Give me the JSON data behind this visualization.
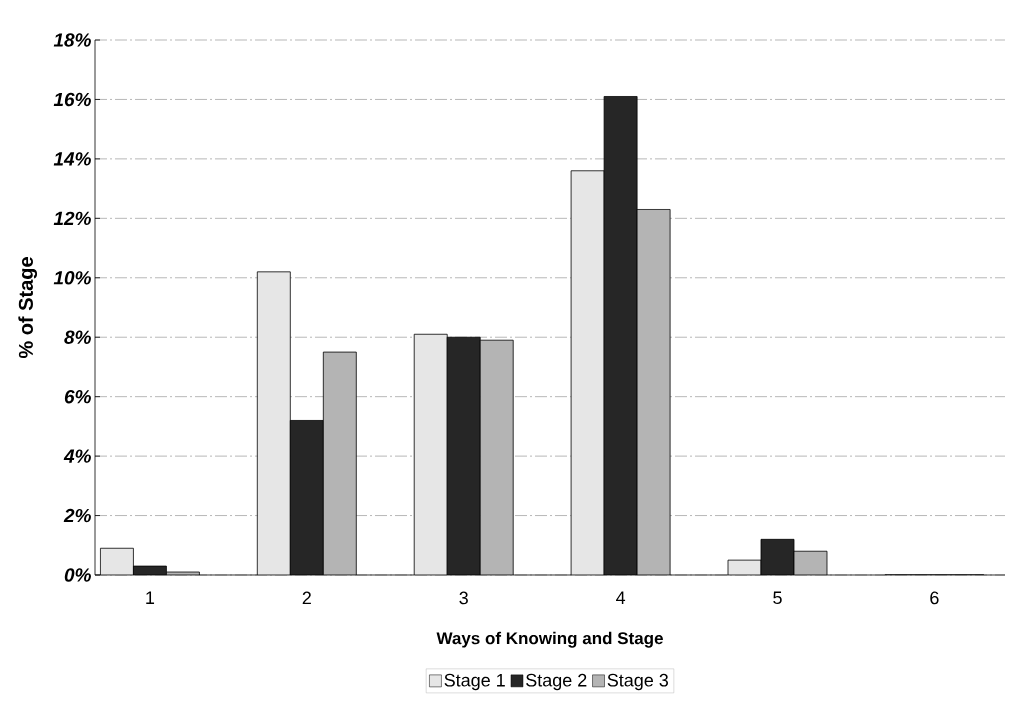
{
  "chart_data": {
    "type": "bar",
    "xlabel": "Ways of Knowing and Stage",
    "ylabel": "% of Stage",
    "categories": [
      "1",
      "2",
      "3",
      "4",
      "5",
      "6"
    ],
    "series": [
      {
        "name": "Stage 1",
        "color": "#e6e6e6",
        "values": [
          0.9,
          10.2,
          8.1,
          13.6,
          0.5,
          0
        ]
      },
      {
        "name": "Stage 2",
        "color": "#262626",
        "values": [
          0.3,
          5.2,
          8.0,
          16.1,
          1.2,
          0
        ]
      },
      {
        "name": "Stage 3",
        "color": "#b4b4b4",
        "values": [
          0.1,
          7.5,
          7.9,
          12.3,
          0.8,
          0
        ]
      }
    ],
    "ylim": [
      0,
      18
    ],
    "yticks": [
      {
        "value": 0,
        "label": "0%"
      },
      {
        "value": 2,
        "label": "2%"
      },
      {
        "value": 4,
        "label": "4%"
      },
      {
        "value": 6,
        "label": "6%"
      },
      {
        "value": 8,
        "label": "8%"
      },
      {
        "value": 10,
        "label": "10%"
      },
      {
        "value": 12,
        "label": "12%"
      },
      {
        "value": 14,
        "label": "14%"
      },
      {
        "value": 16,
        "label": "16%"
      },
      {
        "value": 18,
        "label": "18%"
      }
    ],
    "grid": "y",
    "legend": "bottom"
  }
}
